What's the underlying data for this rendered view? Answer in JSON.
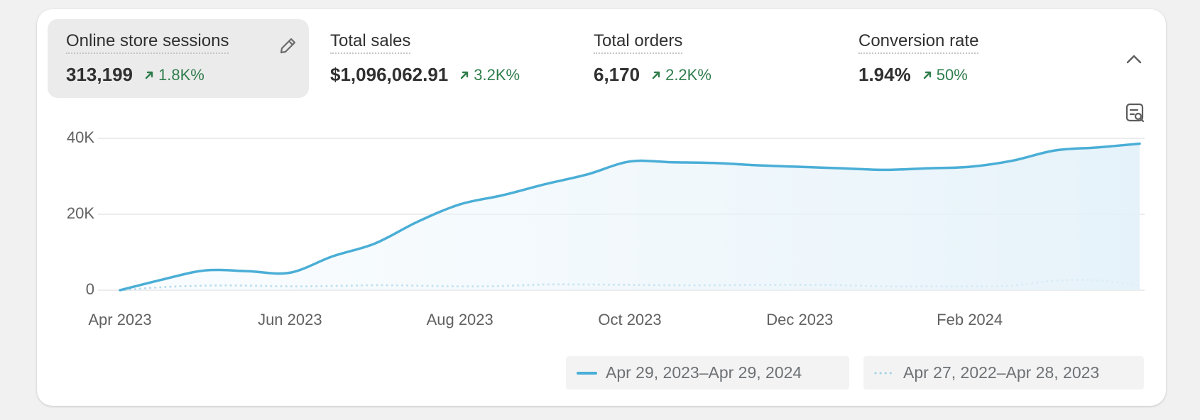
{
  "metrics": [
    {
      "label": "Online store sessions",
      "value": "313,199",
      "change": "1.8K%"
    },
    {
      "label": "Total sales",
      "value": "$1,096,062.91",
      "change": "3.2K%"
    },
    {
      "label": "Total orders",
      "value": "6,170",
      "change": "2.2K%"
    },
    {
      "label": "Conversion rate",
      "value": "1.94%",
      "change": "50%"
    }
  ],
  "chart_data": {
    "type": "line",
    "categories": [
      "Apr 2023",
      null,
      null,
      null,
      "Jun 2023",
      null,
      null,
      null,
      "Aug 2023",
      null,
      null,
      null,
      "Oct 2023",
      null,
      null,
      null,
      "Dec 2023",
      null,
      null,
      null,
      "Feb 2024",
      null,
      null,
      null,
      null
    ],
    "series": [
      {
        "name": "Apr 29, 2023–Apr 29, 2024",
        "color": "#4aaed6",
        "style": "solid",
        "values": [
          0,
          2800,
          5200,
          5000,
          4600,
          8900,
          12300,
          18000,
          22600,
          25000,
          27900,
          30500,
          33900,
          33700,
          33500,
          32900,
          32500,
          32100,
          31700,
          32100,
          32500,
          34100,
          36800,
          37600,
          38600
        ]
      },
      {
        "name": "Apr 27, 2022–Apr 28, 2023",
        "color": "#9fd0e4",
        "style": "dotted",
        "values": [
          0,
          800,
          1200,
          1200,
          1000,
          1100,
          1300,
          1200,
          1000,
          1100,
          1500,
          1500,
          1400,
          1300,
          1300,
          1400,
          1400,
          1300,
          1000,
          1000,
          1000,
          1200,
          2500,
          2600,
          1200
        ]
      }
    ],
    "ylim": [
      0,
      40000
    ],
    "yticks": [
      0,
      {
        "value": 20000,
        "label": "20K"
      },
      {
        "value": 40000,
        "label": "40K"
      }
    ],
    "grid": true
  }
}
